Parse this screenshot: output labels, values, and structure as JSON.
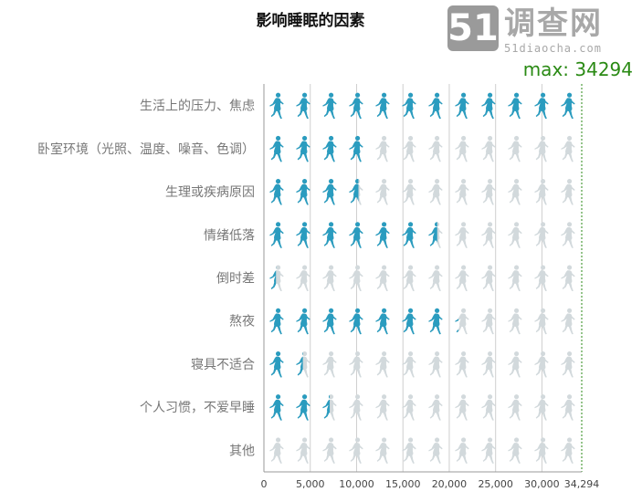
{
  "chart_data": {
    "type": "bar",
    "title": "影响睡眠的因素",
    "categories": [
      "生活上的压力、焦虑",
      "卧室环境（光照、温度、噪音、色调）",
      "生理或疾病原因",
      "情绪低落",
      "倒时差",
      "熬夜",
      "寝具不适合",
      "个人习惯，不爱早睡",
      "其他"
    ],
    "values": [
      34294,
      11800,
      10200,
      18700,
      1300,
      21000,
      4200,
      7100,
      500
    ],
    "xlim": [
      0,
      34294
    ],
    "xticks": [
      0,
      5000,
      10000,
      15000,
      20000,
      25000,
      30000,
      34294
    ],
    "xtick_labels": [
      "0",
      "5,000",
      "10,000",
      "15,000",
      "20,000",
      "25,000",
      "30,000",
      "34,294"
    ],
    "max_label": "max: 34294",
    "grid": true,
    "colors": {
      "active": "#2a9cbf",
      "inactive": "#d2d9dc",
      "max": "#2a8a14"
    },
    "icon": "running-person-icon"
  },
  "watermark": {
    "logo_number": "51",
    "logo_text": "调查网",
    "url": "51diaocha.com"
  }
}
